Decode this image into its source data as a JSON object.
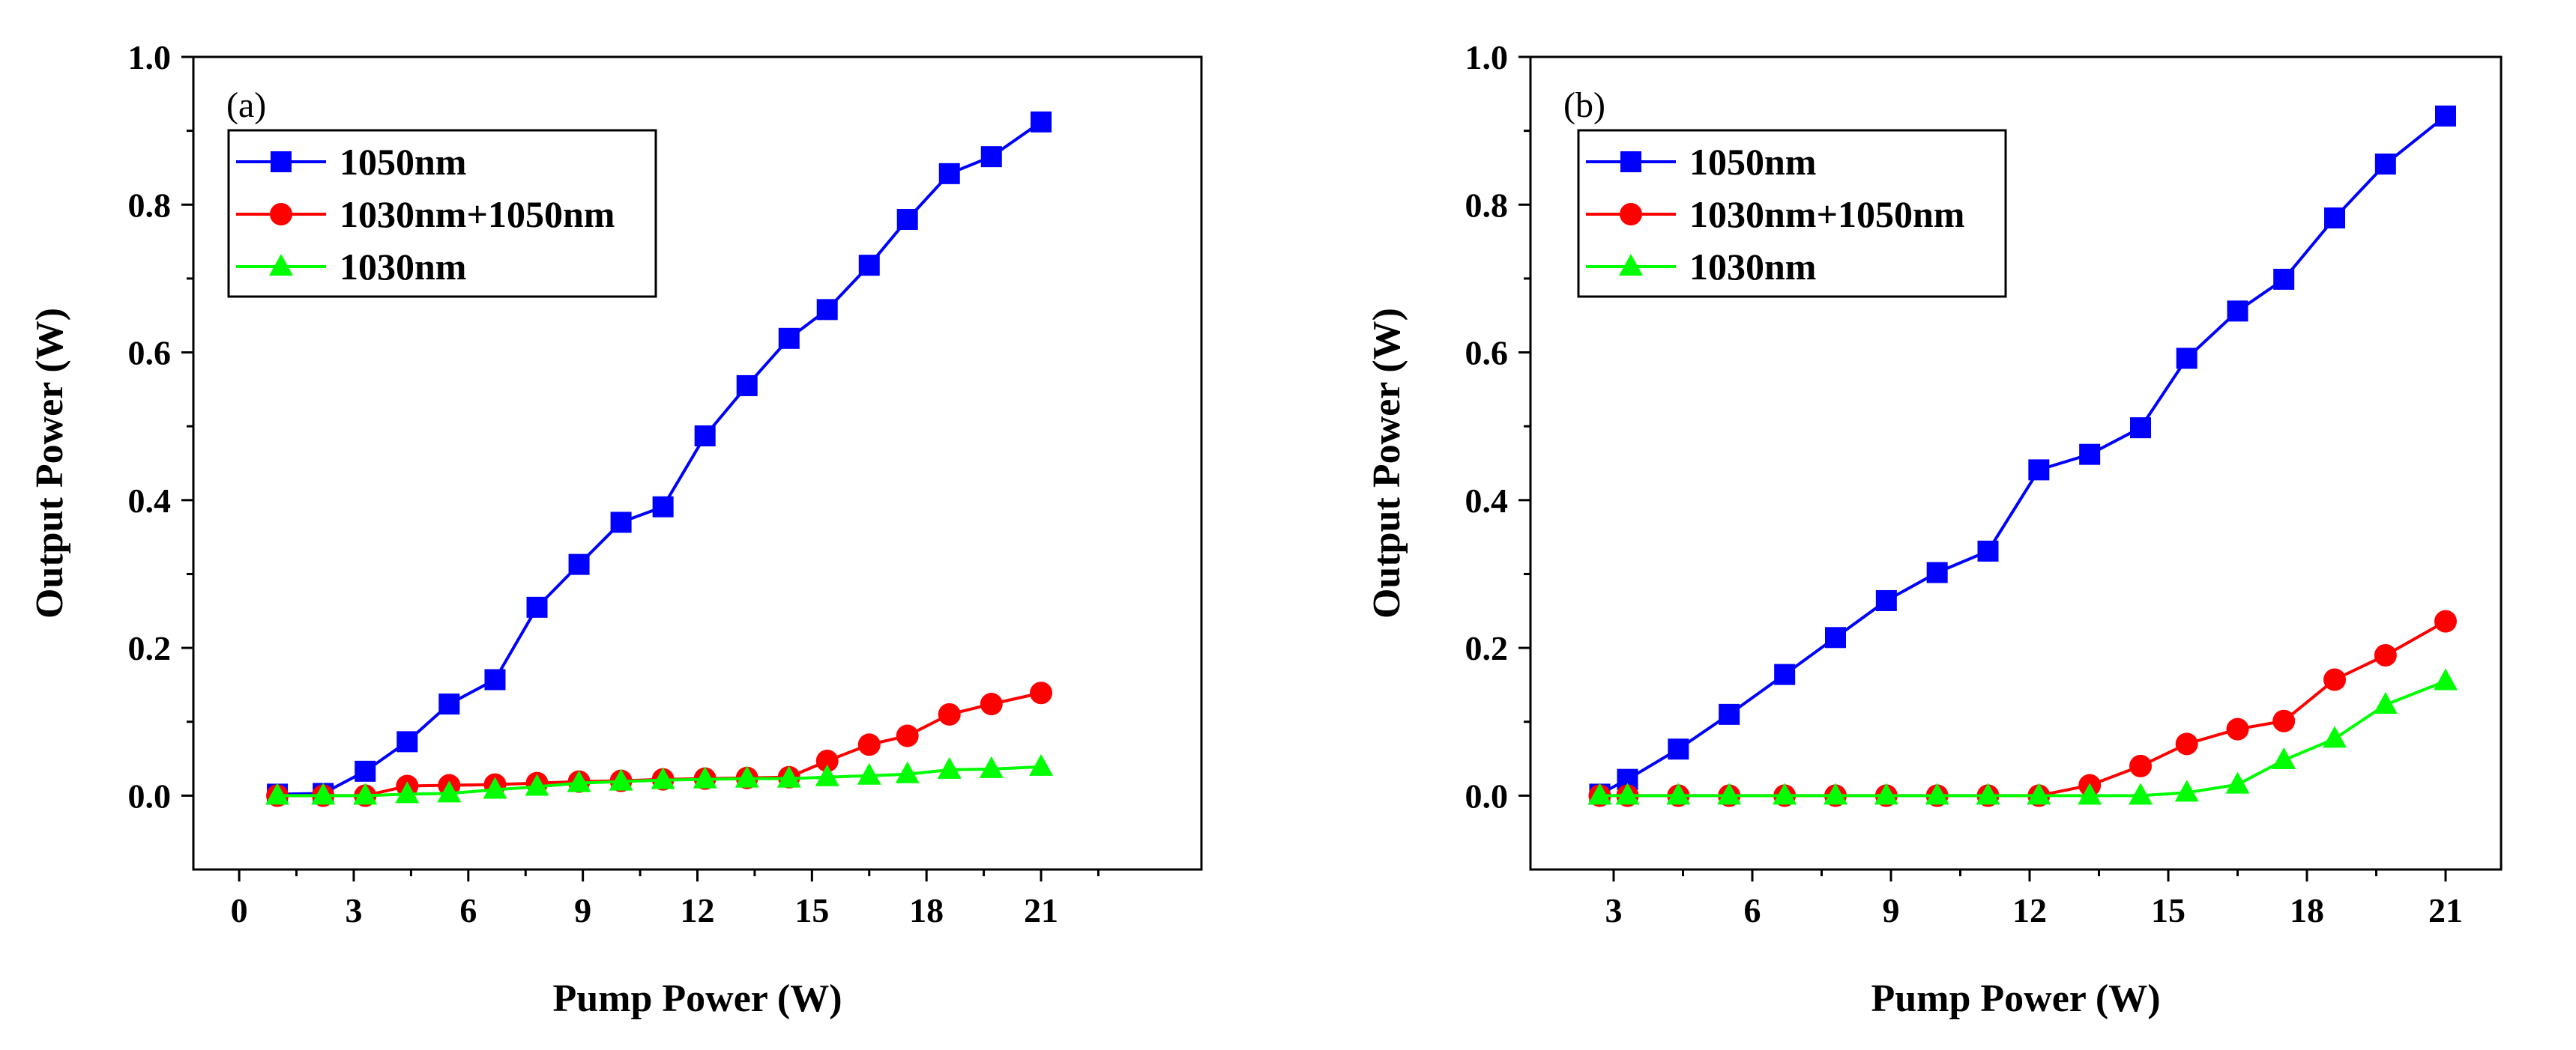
{
  "chart_data": [
    {
      "type": "line",
      "panel_label": "(a)",
      "xlabel": "Pump Power (W)",
      "ylabel": "Output Power (W)",
      "xlim": [
        -1.2,
        25.2
      ],
      "ylim": [
        -0.1,
        1.0
      ],
      "xticks": [
        0,
        3,
        6,
        9,
        12,
        15,
        18,
        21
      ],
      "yticks": [
        0.0,
        0.2,
        0.4,
        0.6,
        0.8,
        1.0
      ],
      "ytick_labels": [
        "0.0",
        "0.2",
        "0.4",
        "0.6",
        "0.8",
        "1.0"
      ],
      "legend_position": "top-left",
      "series": [
        {
          "name": "1050nm",
          "color": "#0000ff",
          "marker": "square",
          "x": [
            1.0,
            2.2,
            3.3,
            4.4,
            5.5,
            6.7,
            7.8,
            8.9,
            10.0,
            11.1,
            12.2,
            13.3,
            14.4,
            15.4,
            16.5,
            17.5,
            18.6,
            19.7,
            21.0
          ],
          "y": [
            0.002,
            0.003,
            0.033,
            0.073,
            0.124,
            0.157,
            0.255,
            0.313,
            0.37,
            0.391,
            0.487,
            0.555,
            0.619,
            0.658,
            0.718,
            0.78,
            0.842,
            0.865,
            0.912
          ]
        },
        {
          "name": "1030nm+1050nm",
          "color": "#ff0000",
          "marker": "circle",
          "x": [
            1.0,
            2.2,
            3.3,
            4.4,
            5.5,
            6.7,
            7.8,
            8.9,
            10.0,
            11.1,
            12.2,
            13.3,
            14.4,
            15.4,
            16.5,
            17.5,
            18.6,
            19.7,
            21.0
          ],
          "y": [
            0.0,
            0.0,
            0.0,
            0.013,
            0.014,
            0.015,
            0.017,
            0.019,
            0.02,
            0.022,
            0.023,
            0.024,
            0.025,
            0.047,
            0.069,
            0.081,
            0.11,
            0.124,
            0.139
          ]
        },
        {
          "name": "1030nm",
          "color": "#00ff00",
          "marker": "triangle",
          "x": [
            1.0,
            2.2,
            3.3,
            4.4,
            5.5,
            6.7,
            7.8,
            8.9,
            10.0,
            11.1,
            12.2,
            13.3,
            14.4,
            15.4,
            16.5,
            17.5,
            18.6,
            19.7,
            21.0
          ],
          "y": [
            0.0,
            0.0,
            0.0,
            0.002,
            0.003,
            0.008,
            0.012,
            0.017,
            0.019,
            0.021,
            0.022,
            0.023,
            0.023,
            0.025,
            0.027,
            0.029,
            0.035,
            0.036,
            0.039
          ]
        }
      ]
    },
    {
      "type": "line",
      "panel_label": "(b)",
      "xlabel": "Pump Power (W)",
      "ylabel": "Output Power (W)",
      "xlim": [
        1.2,
        22.2
      ],
      "ylim": [
        -0.1,
        1.0
      ],
      "xticks": [
        3,
        6,
        9,
        12,
        15,
        18,
        21
      ],
      "yticks": [
        0.0,
        0.2,
        0.4,
        0.6,
        0.8,
        1.0
      ],
      "ytick_labels": [
        "0.0",
        "0.2",
        "0.4",
        "0.6",
        "0.8",
        "1.0"
      ],
      "legend_position": "top-left",
      "series": [
        {
          "name": "1050nm",
          "color": "#0000ff",
          "marker": "square",
          "x": [
            2.7,
            3.3,
            4.4,
            5.5,
            6.7,
            7.8,
            8.9,
            10.0,
            11.1,
            12.2,
            13.3,
            14.4,
            15.4,
            16.5,
            17.5,
            18.6,
            19.7,
            21.0
          ],
          "y": [
            0.002,
            0.022,
            0.063,
            0.11,
            0.164,
            0.214,
            0.264,
            0.302,
            0.331,
            0.441,
            0.462,
            0.498,
            0.592,
            0.656,
            0.699,
            0.782,
            0.855,
            0.92
          ]
        },
        {
          "name": "1030nm+1050nm",
          "color": "#ff0000",
          "marker": "circle",
          "x": [
            2.7,
            3.3,
            4.4,
            5.5,
            6.7,
            7.8,
            8.9,
            10.0,
            11.1,
            12.2,
            13.3,
            14.4,
            15.4,
            16.5,
            17.5,
            18.6,
            19.7,
            21.0
          ],
          "y": [
            0.0,
            0.0,
            0.0,
            0.0,
            0.0,
            0.0,
            0.0,
            0.0,
            0.0,
            0.0,
            0.014,
            0.04,
            0.07,
            0.09,
            0.101,
            0.157,
            0.19,
            0.236
          ]
        },
        {
          "name": "1030nm",
          "color": "#00ff00",
          "marker": "triangle",
          "x": [
            2.7,
            3.3,
            4.4,
            5.5,
            6.7,
            7.8,
            8.9,
            10.0,
            11.1,
            12.2,
            13.3,
            14.4,
            15.4,
            16.5,
            17.5,
            18.6,
            19.7,
            21.0
          ],
          "y": [
            0.0,
            0.0,
            0.0,
            0.0,
            0.0,
            0.0,
            0.0,
            0.0,
            0.0,
            0.0,
            0.0,
            0.0,
            0.004,
            0.015,
            0.048,
            0.077,
            0.123,
            0.155
          ]
        }
      ]
    }
  ]
}
